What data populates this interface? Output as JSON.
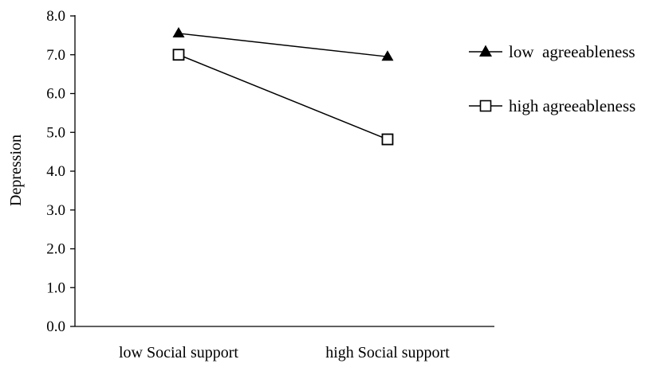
{
  "chart_data": {
    "type": "line",
    "title": "",
    "ylabel": "Depression",
    "xlabel": "",
    "categories": [
      "low Social support",
      "high Social support"
    ],
    "ylim": [
      0,
      8
    ],
    "yticks": [
      "0.0",
      "1.0",
      "2.0",
      "3.0",
      "4.0",
      "5.0",
      "6.0",
      "7.0",
      "8.0"
    ],
    "grid": false,
    "legend_position": "right",
    "series": [
      {
        "name": "low  agreeableness",
        "values": [
          7.55,
          6.95
        ],
        "marker": "filled-triangle",
        "color": "#000000"
      },
      {
        "name": "high agreeableness",
        "values": [
          7.0,
          4.82
        ],
        "marker": "open-square",
        "color": "#000000"
      }
    ]
  }
}
